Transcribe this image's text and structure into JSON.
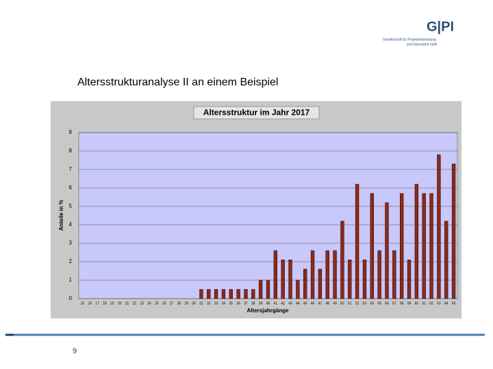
{
  "header": {
    "logo": "G|PI",
    "company_line1": "Gesellschaft für Projektentwicklung",
    "company_line2": "und Innovation mbH"
  },
  "slide_title": "Altersstrukturanalyse II an einem Beispiel",
  "page_number": "9",
  "chart_data": {
    "type": "bar",
    "title": "Altersstruktur im Jahr 2017",
    "x_label": "Altersjahrgänge",
    "y_label": "Anteile in %",
    "categories": [
      "15",
      "16",
      "17",
      "18",
      "19",
      "20",
      "21",
      "22",
      "23",
      "24",
      "25",
      "26",
      "27",
      "28",
      "29",
      "30",
      "31",
      "32",
      "33",
      "34",
      "35",
      "36",
      "37",
      "38",
      "39",
      "40",
      "41",
      "42",
      "43",
      "44",
      "45",
      "46",
      "47",
      "48",
      "49",
      "50",
      "51",
      "52",
      "53",
      "54",
      "55",
      "56",
      "57",
      "58",
      "59",
      "60",
      "61",
      "62",
      "63",
      "64",
      "65"
    ],
    "values": [
      0,
      0,
      0,
      0,
      0,
      0,
      0,
      0,
      0,
      0,
      0,
      0,
      0,
      0,
      0,
      0,
      0.5,
      0.5,
      0.5,
      0.5,
      0.5,
      0.5,
      0.5,
      0.5,
      1,
      1,
      2.6,
      2.1,
      2.1,
      1,
      1.6,
      2.6,
      1.6,
      2.6,
      2.6,
      4.2,
      2.1,
      6.2,
      2.1,
      5.7,
      2.6,
      5.2,
      2.6,
      5.7,
      2.1,
      6.2,
      5.7,
      5.7,
      7.8,
      4.2,
      7.3
    ],
    "color": "#8b2a1a",
    "ylim": [
      0,
      9
    ],
    "yticks": [
      0,
      1,
      2,
      3,
      4,
      5,
      6,
      7,
      8,
      9
    ],
    "grid": true
  }
}
